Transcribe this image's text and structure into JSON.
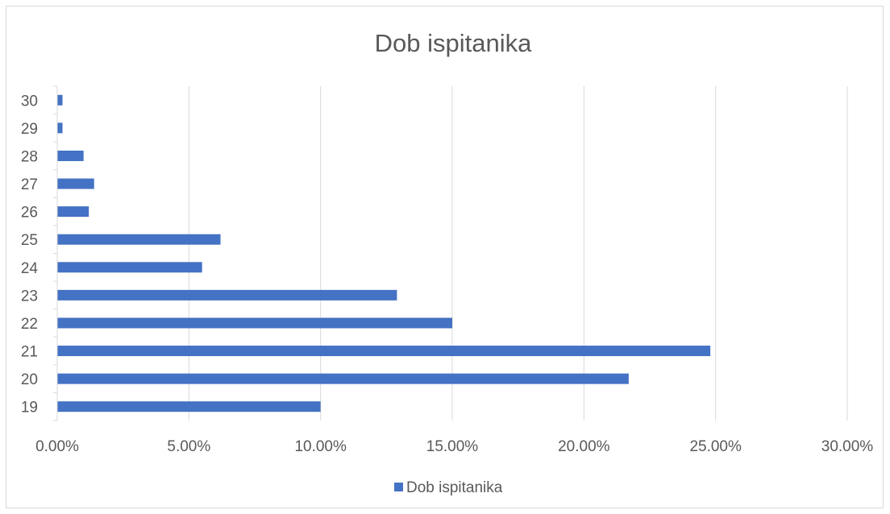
{
  "chart_data": {
    "type": "bar",
    "orientation": "horizontal",
    "title": "Dob ispitanika",
    "categories": [
      "19",
      "20",
      "21",
      "22",
      "23",
      "24",
      "25",
      "26",
      "27",
      "28",
      "29",
      "30"
    ],
    "series": [
      {
        "name": "Dob ispitanika",
        "color": "#4472c4",
        "values": [
          10.0,
          21.7,
          24.8,
          15.0,
          12.9,
          5.5,
          6.2,
          1.2,
          1.4,
          1.0,
          0.2,
          0.2
        ]
      }
    ],
    "xlim": [
      0,
      30
    ],
    "x_ticks": [
      "0.00%",
      "5.00%",
      "10.00%",
      "15.00%",
      "20.00%",
      "25.00%",
      "30.00%"
    ],
    "value_unit": "percent",
    "grid": true,
    "legend": "bottom"
  }
}
